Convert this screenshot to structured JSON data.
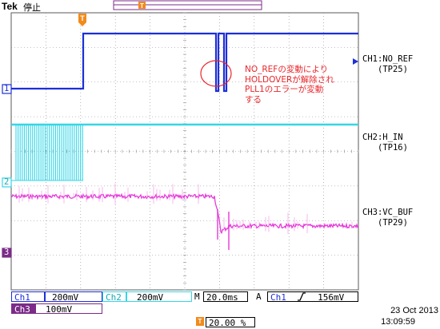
{
  "header": {
    "brand": "Tek",
    "status": "停止",
    "trigger_position_marker": "T"
  },
  "colors": {
    "ch1": "#1c2fd8",
    "ch2": "#35d6e6",
    "ch3": "#e63ad9",
    "annotation": "#e8262b",
    "trigger": "#f28a1c",
    "grid": "#7a7a7a"
  },
  "channels": [
    {
      "marker": "1",
      "label": "CH1:NO_REF",
      "point": "(TP25)"
    },
    {
      "marker": "2",
      "label": "CH2:H_IN",
      "point": "(TP16)"
    },
    {
      "marker": "3",
      "label": "CH3:VC_BUF",
      "point": "(TP29)"
    }
  ],
  "annotation": {
    "lines": [
      "NO_REFの変動により",
      "HOLDOVERが解除され",
      "PLL1のエラーが変動",
      "する"
    ]
  },
  "readouts": {
    "ch1_name": "Ch1",
    "ch1_scale": "200mV",
    "ch2_name": "Ch2",
    "ch2_scale": "200mV",
    "ch3_name": "Ch3",
    "ch3_scale": "100mV",
    "timebase_prefix": "M",
    "timebase": "20.0ms",
    "trigger_mode": "A",
    "trigger_source": "Ch1",
    "trigger_slope_icon": "rising-edge-icon",
    "trigger_level": "156mV",
    "trigger_marker": "T",
    "trigger_position": "20.00 %"
  },
  "datetime": {
    "date": "23 Oct  2013",
    "time": "13:09:59"
  }
}
